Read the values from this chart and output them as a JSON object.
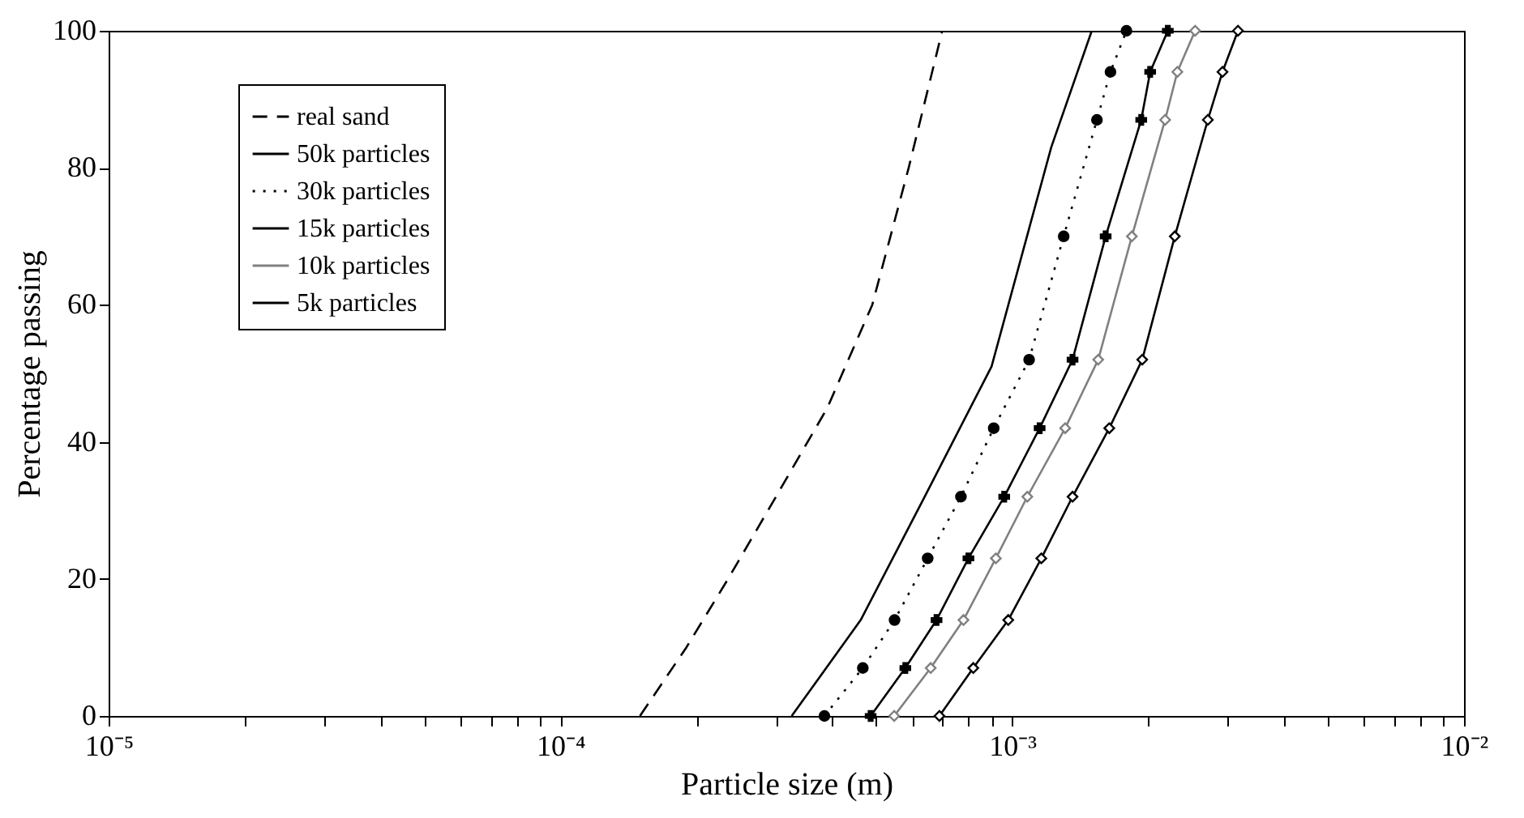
{
  "chart_data": {
    "type": "line",
    "xlabel": "Particle size (m)",
    "ylabel": "Percentage passing",
    "log": "x",
    "grid": false,
    "legend": "top left",
    "xlim": [
      1e-05,
      0.01
    ],
    "ylim": [
      0,
      100
    ],
    "xticks": [
      {
        "value": 1e-05,
        "label": "10⁻⁵"
      },
      {
        "value": 2e-05,
        "label": null
      },
      {
        "value": 3e-05,
        "label": null
      },
      {
        "value": 4e-05,
        "label": null
      },
      {
        "value": 5e-05,
        "label": null
      },
      {
        "value": 6e-05,
        "label": null
      },
      {
        "value": 7e-05,
        "label": null
      },
      {
        "value": 8e-05,
        "label": null
      },
      {
        "value": 9e-05,
        "label": null
      },
      {
        "value": 0.0001,
        "label": "10⁻⁴"
      },
      {
        "value": 0.0002,
        "label": null
      },
      {
        "value": 0.0003,
        "label": null
      },
      {
        "value": 0.0004,
        "label": null
      },
      {
        "value": 0.0005,
        "label": null
      },
      {
        "value": 0.0006,
        "label": null
      },
      {
        "value": 0.0007,
        "label": null
      },
      {
        "value": 0.0008,
        "label": null
      },
      {
        "value": 0.0009,
        "label": null
      },
      {
        "value": 0.001,
        "label": "10⁻³"
      },
      {
        "value": 0.002,
        "label": null
      },
      {
        "value": 0.003,
        "label": null
      },
      {
        "value": 0.004,
        "label": null
      },
      {
        "value": 0.005,
        "label": null
      },
      {
        "value": 0.006,
        "label": null
      },
      {
        "value": 0.007,
        "label": null
      },
      {
        "value": 0.008,
        "label": null
      },
      {
        "value": 0.009,
        "label": null
      },
      {
        "value": 0.01,
        "label": "10⁻²"
      }
    ],
    "yticks": [
      0,
      20,
      40,
      60,
      80,
      100
    ],
    "series": [
      {
        "name": "real sand",
        "color": "#000000",
        "line_style": "dashed",
        "marker": "none",
        "x": [
          0.00015,
          0.00019,
          0.000235,
          0.0003,
          0.00039,
          0.00049,
          0.00059,
          0.0007
        ],
        "values": [
          0,
          10,
          20,
          32,
          45,
          60,
          80,
          100
        ]
      },
      {
        "name": "50k particles",
        "color": "#000000",
        "line_style": "solid",
        "marker": "none",
        "x": [
          0.000325,
          0.000462,
          0.00064,
          0.0009,
          0.00122,
          0.0015
        ],
        "values": [
          0,
          14,
          32,
          51,
          83,
          100
        ]
      },
      {
        "name": "30k particles",
        "color": "#000000",
        "line_style": "dotted",
        "marker": "circle",
        "x": [
          0.000384,
          0.000467,
          0.000549,
          0.00065,
          0.00077,
          0.00091,
          0.00109,
          0.0013,
          0.00154,
          0.00165,
          0.00179
        ],
        "values": [
          0,
          7,
          14,
          23,
          32,
          42,
          52,
          70,
          87,
          94,
          100
        ]
      },
      {
        "name": "15k particles",
        "color": "#000000",
        "line_style": "solid",
        "marker": "cross",
        "x": [
          0.000486,
          0.00058,
          0.00068,
          0.0008,
          0.00096,
          0.00115,
          0.00136,
          0.00161,
          0.00193,
          0.00202,
          0.00221
        ],
        "values": [
          0,
          7,
          14,
          23,
          32,
          42,
          52,
          70,
          87,
          94,
          100
        ]
      },
      {
        "name": "10k particles",
        "color": "#808080",
        "line_style": "solid",
        "marker": "diamond",
        "x": [
          0.000548,
          0.00066,
          0.00078,
          0.00092,
          0.00108,
          0.00131,
          0.00155,
          0.00184,
          0.00218,
          0.00232,
          0.00254
        ],
        "values": [
          0,
          7,
          14,
          23,
          32,
          42,
          52,
          70,
          87,
          94,
          100
        ]
      },
      {
        "name": "5k particles",
        "color": "#000000",
        "line_style": "solid",
        "marker": "diamond",
        "x": [
          0.00069,
          0.00082,
          0.00098,
          0.00116,
          0.00136,
          0.00164,
          0.00194,
          0.00229,
          0.00271,
          0.00292,
          0.00316
        ],
        "values": [
          0,
          7,
          14,
          23,
          32,
          42,
          52,
          70,
          87,
          94,
          100
        ]
      }
    ]
  }
}
